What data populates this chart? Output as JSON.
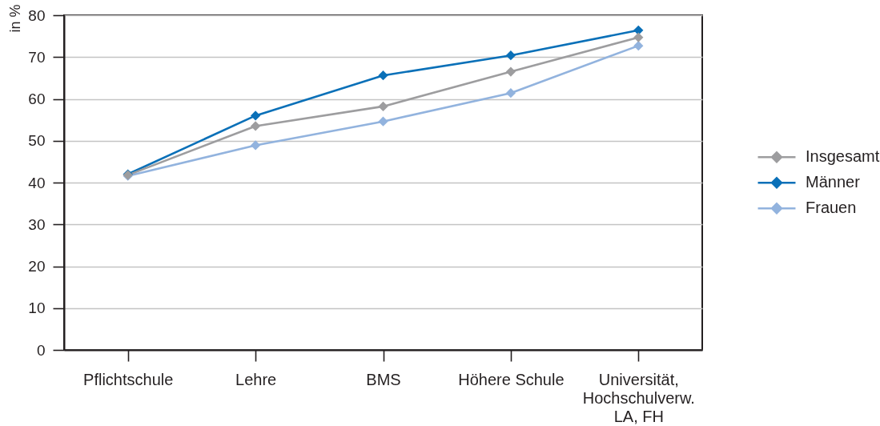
{
  "chart_data": {
    "type": "line",
    "categories": [
      "Pflichtschule",
      "Lehre",
      "BMS",
      "Höhere Schule",
      "Universität, Hochschulverw. LA, FH"
    ],
    "series": [
      {
        "name": "Insgesamt",
        "color": "#9d9d9f",
        "values": [
          41.8,
          53.5,
          58.2,
          66.5,
          74.7
        ]
      },
      {
        "name": "Männer",
        "color": "#0a70b8",
        "values": [
          42.0,
          56.0,
          65.6,
          70.4,
          76.4
        ]
      },
      {
        "name": "Frauen",
        "color": "#92b3de",
        "values": [
          41.6,
          48.9,
          54.6,
          61.4,
          72.7
        ]
      }
    ],
    "ylabel": "in %",
    "ylim": [
      0,
      80
    ],
    "yticks": [
      0,
      10,
      20,
      30,
      40,
      50,
      60,
      70,
      80
    ],
    "grid": "y",
    "legend": "right",
    "marker": "diamond"
  }
}
